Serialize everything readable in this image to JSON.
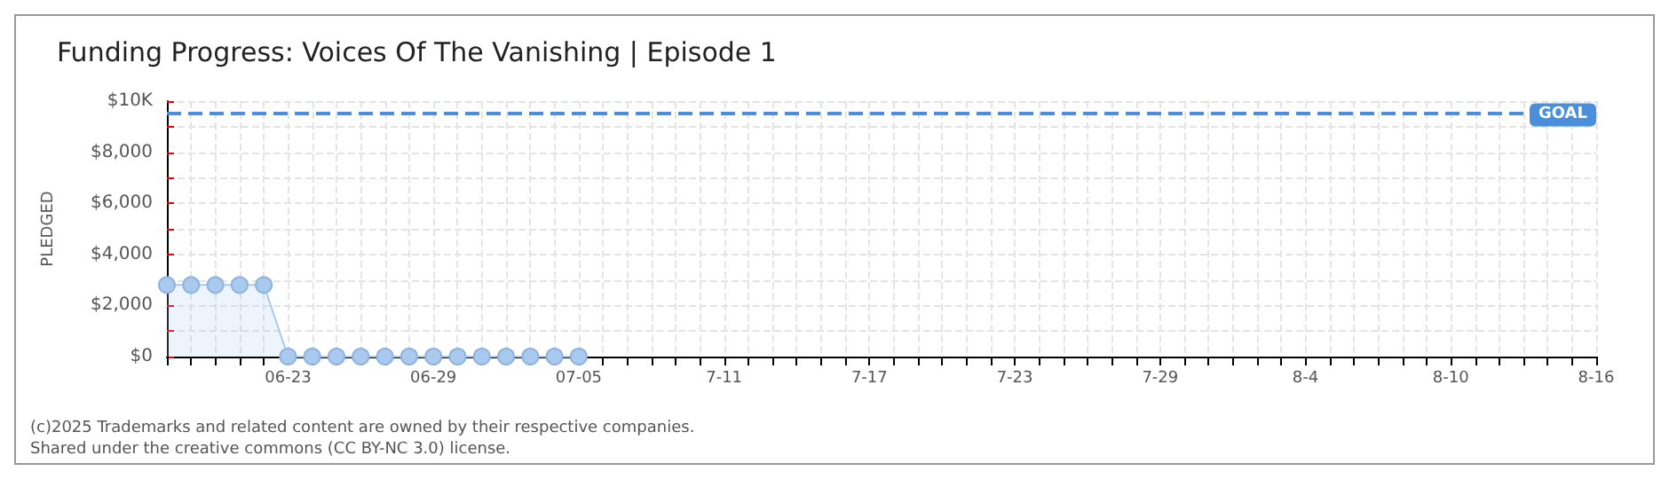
{
  "chart_data": {
    "type": "area",
    "title": "Funding Progress: Voices Of The Vanishing | Episode 1",
    "ylabel": "PLEDGED",
    "x": [
      "--06-18",
      "--06-19",
      "--06-20",
      "--06-21",
      "--06-22",
      "--06-23",
      "--06-24",
      "--06-25",
      "--06-26",
      "--06-27",
      "--06-28",
      "--06-29",
      "--06-30",
      "--07-01",
      "--07-02",
      "--07-03",
      "--07-04",
      "--07-05"
    ],
    "series": [
      {
        "color": "#a9c9ee",
        "values": [
          2800,
          2800,
          2800,
          2800,
          2800,
          0,
          0,
          0,
          0,
          0,
          0,
          0,
          0,
          0,
          0,
          0,
          0,
          0
        ]
      }
    ],
    "xlim": [
      "--06-18",
      "--08-16"
    ],
    "xticks": [
      {
        "value": "--06-18",
        "label": null
      },
      {
        "value": "--06-19",
        "label": null
      },
      {
        "value": "--06-20",
        "label": null
      },
      {
        "value": "--06-21",
        "label": null
      },
      {
        "value": "--06-22",
        "label": null
      },
      {
        "value": "--06-23",
        "label": "06-23"
      },
      {
        "value": "--06-24",
        "label": null
      },
      {
        "value": "--06-25",
        "label": null
      },
      {
        "value": "--06-26",
        "label": null
      },
      {
        "value": "--06-27",
        "label": null
      },
      {
        "value": "--06-28",
        "label": null
      },
      {
        "value": "--06-29",
        "label": "06-29"
      },
      {
        "value": "--06-30",
        "label": null
      },
      {
        "value": "--07-01",
        "label": null
      },
      {
        "value": "--07-02",
        "label": null
      },
      {
        "value": "--07-03",
        "label": null
      },
      {
        "value": "--07-04",
        "label": null
      },
      {
        "value": "--07-05",
        "label": "07-05"
      },
      {
        "value": "--07-06",
        "label": null
      },
      {
        "value": "--07-07",
        "label": null
      },
      {
        "value": "--07-08",
        "label": null
      },
      {
        "value": "--07-09",
        "label": null
      },
      {
        "value": "--07-10",
        "label": null
      },
      {
        "value": "--07-11",
        "label": "7-11"
      },
      {
        "value": "--07-12",
        "label": null
      },
      {
        "value": "--07-13",
        "label": null
      },
      {
        "value": "--07-14",
        "label": null
      },
      {
        "value": "--07-15",
        "label": null
      },
      {
        "value": "--07-16",
        "label": null
      },
      {
        "value": "--07-17",
        "label": "7-17"
      },
      {
        "value": "--07-18",
        "label": null
      },
      {
        "value": "--07-19",
        "label": null
      },
      {
        "value": "--07-20",
        "label": null
      },
      {
        "value": "--07-21",
        "label": null
      },
      {
        "value": "--07-22",
        "label": null
      },
      {
        "value": "--07-23",
        "label": "7-23"
      },
      {
        "value": "--07-24",
        "label": null
      },
      {
        "value": "--07-25",
        "label": null
      },
      {
        "value": "--07-26",
        "label": null
      },
      {
        "value": "--07-27",
        "label": null
      },
      {
        "value": "--07-28",
        "label": null
      },
      {
        "value": "--07-29",
        "label": "7-29"
      },
      {
        "value": "--07-30",
        "label": null
      },
      {
        "value": "--07-31",
        "label": null
      },
      {
        "value": "--08-01",
        "label": null
      },
      {
        "value": "--08-02",
        "label": null
      },
      {
        "value": "--08-03",
        "label": null
      },
      {
        "value": "--08-04",
        "label": "8-4"
      },
      {
        "value": "--08-05",
        "label": null
      },
      {
        "value": "--08-06",
        "label": null
      },
      {
        "value": "--08-07",
        "label": null
      },
      {
        "value": "--08-08",
        "label": null
      },
      {
        "value": "--08-09",
        "label": null
      },
      {
        "value": "--08-10",
        "label": "8-10"
      },
      {
        "value": "--08-11",
        "label": null
      },
      {
        "value": "--08-12",
        "label": null
      },
      {
        "value": "--08-13",
        "label": null
      },
      {
        "value": "--08-14",
        "label": null
      },
      {
        "value": "--08-15",
        "label": null
      },
      {
        "value": "--08-16",
        "label": "8-16"
      }
    ],
    "ylim": [
      0,
      10000
    ],
    "yticks": [
      {
        "value": 0,
        "label": "$0"
      },
      {
        "value": 1000,
        "label": null
      },
      {
        "value": 2000,
        "label": "$2,000"
      },
      {
        "value": 3000,
        "label": null
      },
      {
        "value": 4000,
        "label": "$4,000"
      },
      {
        "value": 5000,
        "label": null
      },
      {
        "value": 6000,
        "label": "$6,000"
      },
      {
        "value": 7000,
        "label": null
      },
      {
        "value": 8000,
        "label": "$8,000"
      },
      {
        "value": 9000,
        "label": null
      },
      {
        "value": 10000,
        "label": "$10K"
      }
    ],
    "ref_lines": [
      {
        "axis": "y",
        "value": 9500,
        "label": "GOAL",
        "color": "#4a8fdc",
        "line_style": "dashed"
      }
    ],
    "grid": true,
    "marker": "circle",
    "line_style": "solid",
    "annotations": [
      "(c)2025",
      "Trademarks and related content are owned by their respective companies.",
      "Shared under the creative commons (CC BY-NC 3.0) license."
    ]
  }
}
